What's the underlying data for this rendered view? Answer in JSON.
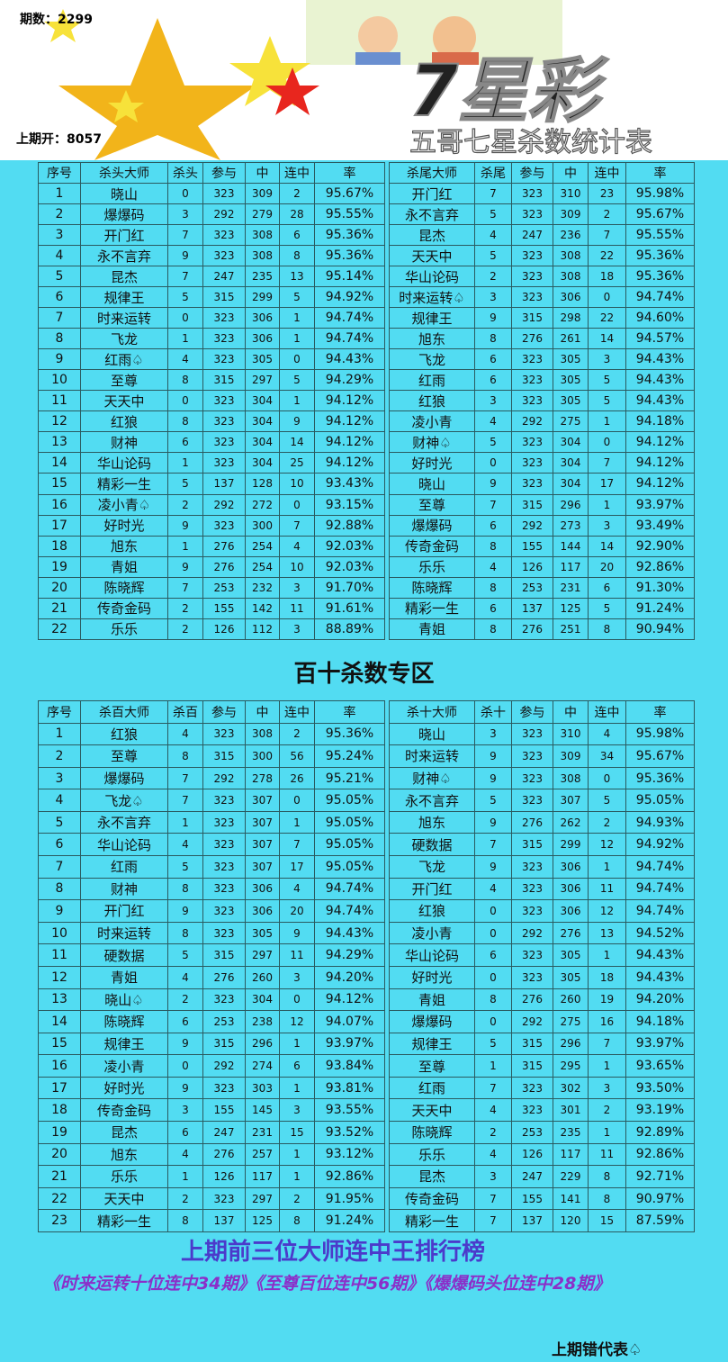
{
  "header": {
    "issue": "期数：2299",
    "last_draw": "上期开：8057",
    "logo": "7星彩",
    "subtitle": "五哥七星杀数统计表"
  },
  "table1": {
    "left": {
      "columns": [
        "序号",
        "杀头大师",
        "杀头",
        "参与",
        "中",
        "连中",
        "率"
      ],
      "rows": [
        [
          "1",
          "晓山",
          "0",
          "323",
          "309",
          "2",
          "95.67%"
        ],
        [
          "2",
          "爆爆码",
          "3",
          "292",
          "279",
          "28",
          "95.55%"
        ],
        [
          "3",
          "开门红",
          "7",
          "323",
          "308",
          "6",
          "95.36%"
        ],
        [
          "4",
          "永不言弃",
          "9",
          "323",
          "308",
          "8",
          "95.36%"
        ],
        [
          "5",
          "昆杰",
          "7",
          "247",
          "235",
          "13",
          "95.14%"
        ],
        [
          "6",
          "规律王",
          "5",
          "315",
          "299",
          "5",
          "94.92%"
        ],
        [
          "7",
          "时来运转",
          "0",
          "323",
          "306",
          "1",
          "94.74%"
        ],
        [
          "8",
          "飞龙",
          "1",
          "323",
          "306",
          "1",
          "94.74%"
        ],
        [
          "9",
          "红雨♤",
          "4",
          "323",
          "305",
          "0",
          "94.43%"
        ],
        [
          "10",
          "至尊",
          "8",
          "315",
          "297",
          "5",
          "94.29%"
        ],
        [
          "11",
          "天天中",
          "0",
          "323",
          "304",
          "1",
          "94.12%"
        ],
        [
          "12",
          "红狼",
          "8",
          "323",
          "304",
          "9",
          "94.12%"
        ],
        [
          "13",
          "财神",
          "6",
          "323",
          "304",
          "14",
          "94.12%"
        ],
        [
          "14",
          "华山论码",
          "1",
          "323",
          "304",
          "25",
          "94.12%"
        ],
        [
          "15",
          "精彩一生",
          "5",
          "137",
          "128",
          "10",
          "93.43%"
        ],
        [
          "16",
          "凌小青♤",
          "2",
          "292",
          "272",
          "0",
          "93.15%"
        ],
        [
          "17",
          "好时光",
          "9",
          "323",
          "300",
          "7",
          "92.88%"
        ],
        [
          "18",
          "旭东",
          "1",
          "276",
          "254",
          "4",
          "92.03%"
        ],
        [
          "19",
          "青姐",
          "9",
          "276",
          "254",
          "10",
          "92.03%"
        ],
        [
          "20",
          "陈晓辉",
          "7",
          "253",
          "232",
          "3",
          "91.70%"
        ],
        [
          "21",
          "传奇金码",
          "2",
          "155",
          "142",
          "11",
          "91.61%"
        ],
        [
          "22",
          "乐乐",
          "2",
          "126",
          "112",
          "3",
          "88.89%"
        ]
      ]
    },
    "right": {
      "columns": [
        "杀尾大师",
        "杀尾",
        "参与",
        "中",
        "连中",
        "率"
      ],
      "rows": [
        [
          "开门红",
          "7",
          "323",
          "310",
          "23",
          "95.98%"
        ],
        [
          "永不言弃",
          "5",
          "323",
          "309",
          "2",
          "95.67%"
        ],
        [
          "昆杰",
          "4",
          "247",
          "236",
          "7",
          "95.55%"
        ],
        [
          "天天中",
          "5",
          "323",
          "308",
          "22",
          "95.36%"
        ],
        [
          "华山论码",
          "2",
          "323",
          "308",
          "18",
          "95.36%"
        ],
        [
          "时来运转♤",
          "3",
          "323",
          "306",
          "0",
          "94.74%"
        ],
        [
          "规律王",
          "9",
          "315",
          "298",
          "22",
          "94.60%"
        ],
        [
          "旭东",
          "8",
          "276",
          "261",
          "14",
          "94.57%"
        ],
        [
          "飞龙",
          "6",
          "323",
          "305",
          "3",
          "94.43%"
        ],
        [
          "红雨",
          "6",
          "323",
          "305",
          "5",
          "94.43%"
        ],
        [
          "红狼",
          "3",
          "323",
          "305",
          "5",
          "94.43%"
        ],
        [
          "凌小青",
          "4",
          "292",
          "275",
          "1",
          "94.18%"
        ],
        [
          "财神♤",
          "5",
          "323",
          "304",
          "0",
          "94.12%"
        ],
        [
          "好时光",
          "0",
          "323",
          "304",
          "7",
          "94.12%"
        ],
        [
          "晓山",
          "9",
          "323",
          "304",
          "17",
          "94.12%"
        ],
        [
          "至尊",
          "7",
          "315",
          "296",
          "1",
          "93.97%"
        ],
        [
          "爆爆码",
          "6",
          "292",
          "273",
          "3",
          "93.49%"
        ],
        [
          "传奇金码",
          "8",
          "155",
          "144",
          "14",
          "92.90%"
        ],
        [
          "乐乐",
          "4",
          "126",
          "117",
          "20",
          "92.86%"
        ],
        [
          "陈晓辉",
          "8",
          "253",
          "231",
          "6",
          "91.30%"
        ],
        [
          "精彩一生",
          "6",
          "137",
          "125",
          "5",
          "91.24%"
        ],
        [
          "青姐",
          "8",
          "276",
          "251",
          "8",
          "90.94%"
        ]
      ]
    }
  },
  "section_title": "百十杀数专区",
  "table2": {
    "left": {
      "columns": [
        "序号",
        "杀百大师",
        "杀百",
        "参与",
        "中",
        "连中",
        "率"
      ],
      "rows": [
        [
          "1",
          "红狼",
          "4",
          "323",
          "308",
          "2",
          "95.36%"
        ],
        [
          "2",
          "至尊",
          "8",
          "315",
          "300",
          "56",
          "95.24%"
        ],
        [
          "3",
          "爆爆码",
          "7",
          "292",
          "278",
          "26",
          "95.21%"
        ],
        [
          "4",
          "飞龙♤",
          "7",
          "323",
          "307",
          "0",
          "95.05%"
        ],
        [
          "5",
          "永不言弃",
          "1",
          "323",
          "307",
          "1",
          "95.05%"
        ],
        [
          "6",
          "华山论码",
          "4",
          "323",
          "307",
          "7",
          "95.05%"
        ],
        [
          "7",
          "红雨",
          "5",
          "323",
          "307",
          "17",
          "95.05%"
        ],
        [
          "8",
          "财神",
          "8",
          "323",
          "306",
          "4",
          "94.74%"
        ],
        [
          "9",
          "开门红",
          "9",
          "323",
          "306",
          "20",
          "94.74%"
        ],
        [
          "10",
          "时来运转",
          "8",
          "323",
          "305",
          "9",
          "94.43%"
        ],
        [
          "11",
          "硬数据",
          "5",
          "315",
          "297",
          "11",
          "94.29%"
        ],
        [
          "12",
          "青姐",
          "4",
          "276",
          "260",
          "3",
          "94.20%"
        ],
        [
          "13",
          "晓山♤",
          "2",
          "323",
          "304",
          "0",
          "94.12%"
        ],
        [
          "14",
          "陈晓辉",
          "6",
          "253",
          "238",
          "12",
          "94.07%"
        ],
        [
          "15",
          "规律王",
          "9",
          "315",
          "296",
          "1",
          "93.97%"
        ],
        [
          "16",
          "凌小青",
          "0",
          "292",
          "274",
          "6",
          "93.84%"
        ],
        [
          "17",
          "好时光",
          "9",
          "323",
          "303",
          "1",
          "93.81%"
        ],
        [
          "18",
          "传奇金码",
          "3",
          "155",
          "145",
          "3",
          "93.55%"
        ],
        [
          "19",
          "昆杰",
          "6",
          "247",
          "231",
          "15",
          "93.52%"
        ],
        [
          "20",
          "旭东",
          "4",
          "276",
          "257",
          "1",
          "93.12%"
        ],
        [
          "21",
          "乐乐",
          "1",
          "126",
          "117",
          "1",
          "92.86%"
        ],
        [
          "22",
          "天天中",
          "2",
          "323",
          "297",
          "2",
          "91.95%"
        ],
        [
          "23",
          "精彩一生",
          "8",
          "137",
          "125",
          "8",
          "91.24%"
        ]
      ]
    },
    "right": {
      "columns": [
        "杀十大师",
        "杀十",
        "参与",
        "中",
        "连中",
        "率"
      ],
      "rows": [
        [
          "晓山",
          "3",
          "323",
          "310",
          "4",
          "95.98%"
        ],
        [
          "时来运转",
          "9",
          "323",
          "309",
          "34",
          "95.67%"
        ],
        [
          "财神♤",
          "9",
          "323",
          "308",
          "0",
          "95.36%"
        ],
        [
          "永不言弃",
          "5",
          "323",
          "307",
          "5",
          "95.05%"
        ],
        [
          "旭东",
          "9",
          "276",
          "262",
          "2",
          "94.93%"
        ],
        [
          "硬数据",
          "7",
          "315",
          "299",
          "12",
          "94.92%"
        ],
        [
          "飞龙",
          "9",
          "323",
          "306",
          "1",
          "94.74%"
        ],
        [
          "开门红",
          "4",
          "323",
          "306",
          "11",
          "94.74%"
        ],
        [
          "红狼",
          "0",
          "323",
          "306",
          "12",
          "94.74%"
        ],
        [
          "凌小青",
          "0",
          "292",
          "276",
          "13",
          "94.52%"
        ],
        [
          "华山论码",
          "6",
          "323",
          "305",
          "1",
          "94.43%"
        ],
        [
          "好时光",
          "0",
          "323",
          "305",
          "18",
          "94.43%"
        ],
        [
          "青姐",
          "8",
          "276",
          "260",
          "19",
          "94.20%"
        ],
        [
          "爆爆码",
          "0",
          "292",
          "275",
          "16",
          "94.18%"
        ],
        [
          "规律王",
          "5",
          "315",
          "296",
          "7",
          "93.97%"
        ],
        [
          "至尊",
          "1",
          "315",
          "295",
          "1",
          "93.65%"
        ],
        [
          "红雨",
          "7",
          "323",
          "302",
          "3",
          "93.50%"
        ],
        [
          "天天中",
          "4",
          "323",
          "301",
          "2",
          "93.19%"
        ],
        [
          "陈晓辉",
          "2",
          "253",
          "235",
          "1",
          "92.89%"
        ],
        [
          "乐乐",
          "4",
          "126",
          "117",
          "11",
          "92.86%"
        ],
        [
          "昆杰",
          "3",
          "247",
          "229",
          "8",
          "92.71%"
        ],
        [
          "传奇金码",
          "7",
          "155",
          "141",
          "8",
          "90.97%"
        ],
        [
          "精彩一生",
          "7",
          "137",
          "120",
          "15",
          "87.59%"
        ]
      ]
    }
  },
  "ranking_title": "上期前三位大师连中王排行榜",
  "ranking_text": "《时来运转十位连中34期》《至尊百位连中56期》《爆爆码头位连中28期》",
  "footer": "上期错代表♤"
}
